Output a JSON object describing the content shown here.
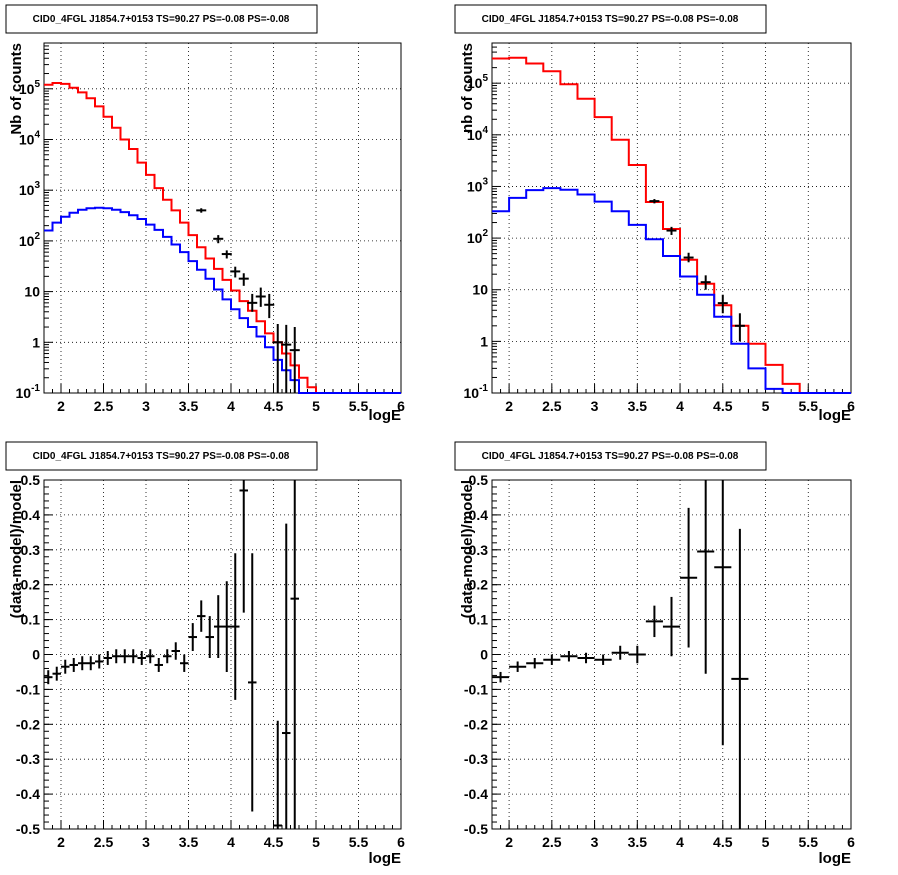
{
  "chart_data": [
    {
      "type": "line",
      "title": "CID0_4FGL J1854.7+0153 TS=90.27 PS=-0.08 PS=-0.08",
      "xlabel": "logE",
      "ylabel": "Nb of counts",
      "xlim": [
        1.8,
        6.0
      ],
      "ylim": [
        0.1,
        800000
      ],
      "log_y": true,
      "grid": true,
      "x_ticks": [
        "2",
        "2.5",
        "3",
        "3.5",
        "4",
        "4.5",
        "5",
        "5.5",
        "6"
      ],
      "y_ticks": [
        {
          "v": 0.1,
          "t": "10",
          "s": "-1"
        },
        {
          "v": 1,
          "t": "1",
          "s": ""
        },
        {
          "v": 10,
          "t": "10",
          "s": ""
        },
        {
          "v": 100,
          "t": "10",
          "s": "2"
        },
        {
          "v": 1000,
          "t": "10",
          "s": "3"
        },
        {
          "v": 10000,
          "t": "10",
          "s": "4"
        },
        {
          "v": 100000,
          "t": "10",
          "s": "5"
        }
      ],
      "bin_edges": [
        1.8,
        1.9,
        2.0,
        2.1,
        2.2,
        2.3,
        2.4,
        2.5,
        2.6,
        2.7,
        2.8,
        2.9,
        3.0,
        3.1,
        3.2,
        3.3,
        3.4,
        3.5,
        3.6,
        3.7,
        3.8,
        3.9,
        4.0,
        4.1,
        4.2,
        4.3,
        4.4,
        4.5,
        4.6,
        4.7,
        4.8,
        4.9,
        5.0,
        5.1,
        5.2,
        5.3,
        5.4,
        5.5,
        5.6,
        5.7,
        5.8,
        5.9,
        6.0
      ],
      "series": [
        {
          "color": "#ff0000",
          "values": [
            120000,
            130000,
            125000,
            105000,
            85000,
            65000,
            45000,
            28000,
            17000,
            10000,
            6500,
            3500,
            2000,
            1100,
            650,
            400,
            230,
            130,
            75,
            45,
            28,
            17,
            10.5,
            6.5,
            4.2,
            2.6,
            1.5,
            1.0,
            0.6,
            0.35,
            0.2,
            0.13,
            0.1,
            0.1,
            0.1,
            0.1,
            0.1,
            0.1,
            0.1,
            0.1,
            0.1,
            0.1
          ]
        },
        {
          "color": "#0000ff",
          "values": [
            160,
            230,
            300,
            360,
            410,
            440,
            450,
            440,
            410,
            370,
            320,
            270,
            210,
            165,
            120,
            85,
            60,
            40,
            27,
            18,
            11,
            7,
            4.5,
            3.0,
            2.0,
            1.3,
            0.8,
            0.45,
            0.28,
            0.18,
            0.1,
            0.1,
            0.1,
            0.1,
            0.1,
            0.1,
            0.1,
            0.1,
            0.1,
            0.1,
            0.1,
            0.1
          ]
        }
      ],
      "data_points": [
        {
          "x": 3.65,
          "y": 400,
          "lo": 360,
          "hi": 440
        },
        {
          "x": 3.85,
          "y": 110,
          "lo": 90,
          "hi": 130
        },
        {
          "x": 3.95,
          "y": 55,
          "lo": 45,
          "hi": 65
        },
        {
          "x": 4.05,
          "y": 25,
          "lo": 19,
          "hi": 31
        },
        {
          "x": 4.15,
          "y": 18,
          "lo": 13,
          "hi": 23
        },
        {
          "x": 4.25,
          "y": 6,
          "lo": 4,
          "hi": 9
        },
        {
          "x": 4.35,
          "y": 8,
          "lo": 5,
          "hi": 12
        },
        {
          "x": 4.45,
          "y": 5.5,
          "lo": 3,
          "hi": 9
        },
        {
          "x": 4.55,
          "y": 1,
          "lo": 0.1,
          "hi": 2.3
        },
        {
          "x": 4.65,
          "y": 0.9,
          "lo": 0.1,
          "hi": 2.2
        },
        {
          "x": 4.75,
          "y": 0.7,
          "lo": 0.1,
          "hi": 2.0
        }
      ]
    },
    {
      "type": "line",
      "title": "CID0_4FGL J1854.7+0153 TS=90.27 PS=-0.08 PS=-0.08",
      "xlabel": "logE",
      "ylabel": "nb of counts",
      "xlim": [
        1.8,
        6.0
      ],
      "ylim": [
        0.1,
        600000
      ],
      "log_y": true,
      "grid": true,
      "x_ticks": [
        "2",
        "2.5",
        "3",
        "3.5",
        "4",
        "4.5",
        "5",
        "5.5",
        "6"
      ],
      "y_ticks": [
        {
          "v": 0.1,
          "t": "10",
          "s": "-1"
        },
        {
          "v": 1,
          "t": "1",
          "s": ""
        },
        {
          "v": 10,
          "t": "10",
          "s": ""
        },
        {
          "v": 100,
          "t": "10",
          "s": "2"
        },
        {
          "v": 1000,
          "t": "10",
          "s": "3"
        },
        {
          "v": 10000,
          "t": "10",
          "s": "4"
        },
        {
          "v": 100000,
          "t": "10",
          "s": "5"
        }
      ],
      "bin_edges": [
        1.8,
        2.0,
        2.2,
        2.4,
        2.6,
        2.8,
        3.0,
        3.2,
        3.4,
        3.6,
        3.8,
        4.0,
        4.2,
        4.4,
        4.6,
        4.8,
        5.0,
        5.2,
        5.4,
        5.6,
        5.8,
        6.0
      ],
      "series": [
        {
          "color": "#ff0000",
          "values": [
            300000,
            310000,
            240000,
            170000,
            95000,
            50000,
            22000,
            8000,
            2600,
            500,
            150,
            38,
            13,
            5,
            2,
            0.9,
            0.35,
            0.15,
            0.1,
            0.1,
            0.1
          ]
        },
        {
          "color": "#0000ff",
          "values": [
            330,
            600,
            850,
            930,
            860,
            700,
            510,
            330,
            180,
            95,
            45,
            18,
            8,
            3,
            0.9,
            0.3,
            0.12,
            0.1,
            0.1,
            0.1,
            0.1
          ]
        }
      ],
      "data_points": [
        {
          "x": 3.7,
          "y": 520,
          "lo": 470,
          "hi": 570
        },
        {
          "x": 3.9,
          "y": 140,
          "lo": 115,
          "hi": 165
        },
        {
          "x": 4.1,
          "y": 42,
          "lo": 34,
          "hi": 52
        },
        {
          "x": 4.3,
          "y": 14,
          "lo": 10,
          "hi": 19
        },
        {
          "x": 4.5,
          "y": 5.5,
          "lo": 3.5,
          "hi": 8
        },
        {
          "x": 4.7,
          "y": 2.0,
          "lo": 1.0,
          "hi": 3.5
        }
      ]
    },
    {
      "type": "scatter",
      "title": "CID0_4FGL J1854.7+0153 TS=90.27 PS=-0.08 PS=-0.08",
      "xlabel": "logE",
      "ylabel": "(data-model)/model",
      "xlim": [
        1.8,
        6.0
      ],
      "ylim": [
        -0.5,
        0.5
      ],
      "grid": true,
      "x_ticks": [
        "2",
        "2.5",
        "3",
        "3.5",
        "4",
        "4.5",
        "5",
        "5.5",
        "6"
      ],
      "y_ticks": [
        "-0.5",
        "-0.4",
        "-0.3",
        "-0.2",
        "-0.1",
        "0",
        "0.1",
        "0.2",
        "0.3",
        "0.4",
        "0.5"
      ],
      "x_halfwidth": 0.05,
      "points": [
        {
          "x": 1.85,
          "y": -0.065,
          "err": 0.02
        },
        {
          "x": 1.95,
          "y": -0.055,
          "err": 0.02
        },
        {
          "x": 2.05,
          "y": -0.035,
          "err": 0.02
        },
        {
          "x": 2.15,
          "y": -0.03,
          "err": 0.02
        },
        {
          "x": 2.25,
          "y": -0.025,
          "err": 0.02
        },
        {
          "x": 2.35,
          "y": -0.025,
          "err": 0.02
        },
        {
          "x": 2.45,
          "y": -0.02,
          "err": 0.02
        },
        {
          "x": 2.55,
          "y": -0.01,
          "err": 0.02
        },
        {
          "x": 2.65,
          "y": -0.005,
          "err": 0.02
        },
        {
          "x": 2.75,
          "y": -0.005,
          "err": 0.02
        },
        {
          "x": 2.85,
          "y": -0.005,
          "err": 0.02
        },
        {
          "x": 2.95,
          "y": -0.01,
          "err": 0.02
        },
        {
          "x": 3.05,
          "y": -0.005,
          "err": 0.02
        },
        {
          "x": 3.15,
          "y": -0.03,
          "err": 0.02
        },
        {
          "x": 3.25,
          "y": -0.005,
          "err": 0.02
        },
        {
          "x": 3.35,
          "y": 0.01,
          "err": 0.025
        },
        {
          "x": 3.45,
          "y": -0.025,
          "err": 0.025
        },
        {
          "x": 3.55,
          "y": 0.05,
          "err": 0.04
        },
        {
          "x": 3.65,
          "y": 0.11,
          "err": 0.045
        },
        {
          "x": 3.75,
          "y": 0.05,
          "err": 0.06
        },
        {
          "x": 3.85,
          "y": 0.08,
          "err": 0.09
        },
        {
          "x": 3.95,
          "y": 0.08,
          "err": 0.13
        },
        {
          "x": 4.05,
          "y": 0.08,
          "err": 0.21
        },
        {
          "x": 4.15,
          "y": 0.47,
          "err": 0.35
        },
        {
          "x": 4.25,
          "y": -0.08,
          "err": 0.37
        },
        {
          "x": 4.55,
          "y": -0.49,
          "err": 0.3
        },
        {
          "x": 4.65,
          "y": -0.225,
          "err": 0.6
        },
        {
          "x": 4.75,
          "y": 0.16,
          "err": 0.7
        }
      ]
    },
    {
      "type": "scatter",
      "title": "CID0_4FGL J1854.7+0153 TS=90.27 PS=-0.08 PS=-0.08",
      "xlabel": "logE",
      "ylabel": "(data-model)/model",
      "xlim": [
        1.8,
        6.0
      ],
      "ylim": [
        -0.5,
        0.5
      ],
      "grid": true,
      "x_ticks": [
        "2",
        "2.5",
        "3",
        "3.5",
        "4",
        "4.5",
        "5",
        "5.5",
        "6"
      ],
      "y_ticks": [
        "-0.5",
        "-0.4",
        "-0.3",
        "-0.2",
        "-0.1",
        "0",
        "0.1",
        "0.2",
        "0.3",
        "0.4",
        "0.5"
      ],
      "x_halfwidth": 0.1,
      "points": [
        {
          "x": 1.9,
          "y": -0.065,
          "err": 0.015
        },
        {
          "x": 2.1,
          "y": -0.035,
          "err": 0.015
        },
        {
          "x": 2.3,
          "y": -0.025,
          "err": 0.015
        },
        {
          "x": 2.5,
          "y": -0.015,
          "err": 0.015
        },
        {
          "x": 2.7,
          "y": -0.005,
          "err": 0.015
        },
        {
          "x": 2.9,
          "y": -0.01,
          "err": 0.015
        },
        {
          "x": 3.1,
          "y": -0.015,
          "err": 0.015
        },
        {
          "x": 3.3,
          "y": 0.005,
          "err": 0.02
        },
        {
          "x": 3.5,
          "y": 0.0,
          "err": 0.025
        },
        {
          "x": 3.7,
          "y": 0.095,
          "err": 0.045
        },
        {
          "x": 3.9,
          "y": 0.08,
          "err": 0.085
        },
        {
          "x": 4.1,
          "y": 0.22,
          "err": 0.2
        },
        {
          "x": 4.3,
          "y": 0.295,
          "err": 0.35
        },
        {
          "x": 4.5,
          "y": 0.25,
          "err": 0.51
        },
        {
          "x": 4.7,
          "y": -0.07,
          "err": 0.43
        }
      ]
    }
  ]
}
